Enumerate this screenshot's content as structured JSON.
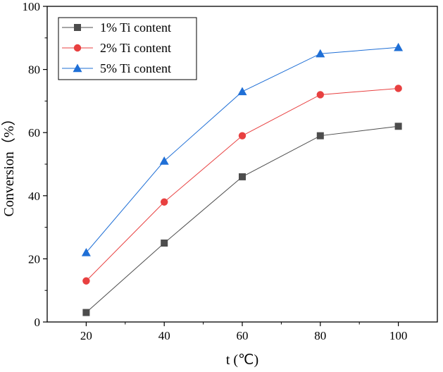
{
  "chart_data": {
    "type": "line",
    "title": "",
    "xlabel": "t (℃)",
    "ylabel": "Conversion（%）",
    "x": [
      20,
      40,
      60,
      80,
      100
    ],
    "xticks": [
      "20",
      "40",
      "60",
      "80",
      "100"
    ],
    "yticks": [
      "0",
      "20",
      "40",
      "60",
      "80",
      "100"
    ],
    "xlim": [
      10,
      110
    ],
    "ylim": [
      0,
      100
    ],
    "grid": false,
    "legend_position": "top-left",
    "series": [
      {
        "name": "1% Ti content",
        "values": [
          3,
          25,
          46,
          59,
          62
        ],
        "color": "#4d4d4d",
        "marker": "square"
      },
      {
        "name": "2% Ti content",
        "values": [
          13,
          38,
          59,
          72,
          74
        ],
        "color": "#e84040",
        "marker": "circle"
      },
      {
        "name": "5% Ti content",
        "values": [
          22,
          51,
          73,
          85,
          87
        ],
        "color": "#1f6fd6",
        "marker": "triangle"
      }
    ]
  }
}
